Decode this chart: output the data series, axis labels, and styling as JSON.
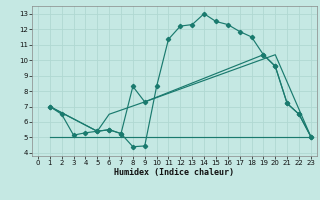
{
  "xlabel": "Humidex (Indice chaleur)",
  "background_color": "#c5e8e3",
  "grid_color": "#b0d8d2",
  "line_color": "#1a7a6e",
  "xlim": [
    -0.5,
    23.5
  ],
  "ylim": [
    3.8,
    13.5
  ],
  "xticks": [
    0,
    1,
    2,
    3,
    4,
    5,
    6,
    7,
    8,
    9,
    10,
    11,
    12,
    13,
    14,
    15,
    16,
    17,
    18,
    19,
    20,
    21,
    22,
    23
  ],
  "yticks": [
    4,
    5,
    6,
    7,
    8,
    9,
    10,
    11,
    12,
    13
  ],
  "line_main_x": [
    1,
    2,
    3,
    4,
    5,
    6,
    7,
    8,
    9,
    10,
    11,
    12,
    13,
    14,
    15,
    16,
    17,
    18,
    19,
    20,
    21,
    22,
    23
  ],
  "line_main_y": [
    7.0,
    6.5,
    5.15,
    5.3,
    5.4,
    5.5,
    5.25,
    4.4,
    4.45,
    8.3,
    11.35,
    12.2,
    12.3,
    13.0,
    12.5,
    12.3,
    11.85,
    11.5,
    10.35,
    9.6,
    7.2,
    6.5,
    5.05
  ],
  "line2_x": [
    1,
    5,
    6,
    7,
    8,
    9,
    19,
    20,
    21,
    22,
    23
  ],
  "line2_y": [
    7.0,
    5.4,
    5.5,
    5.25,
    8.3,
    7.3,
    10.35,
    9.6,
    7.2,
    6.5,
    5.05
  ],
  "line3_x": [
    1,
    5,
    6,
    20,
    23
  ],
  "line3_y": [
    5.05,
    5.05,
    5.05,
    5.05,
    5.05
  ],
  "line4_x": [
    1,
    5,
    6,
    9,
    20,
    23
  ],
  "line4_y": [
    7.0,
    5.4,
    6.5,
    7.3,
    10.35,
    5.05
  ]
}
